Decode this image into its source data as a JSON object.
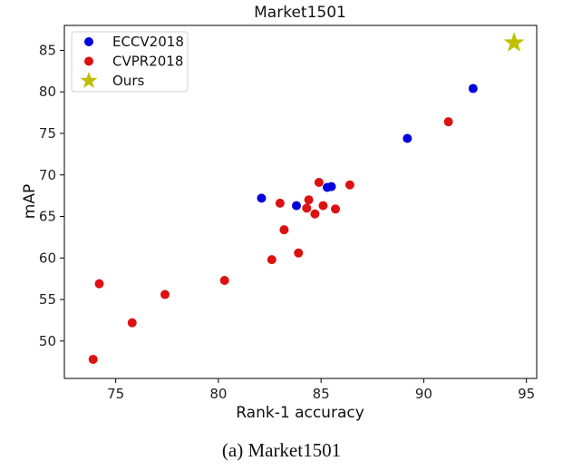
{
  "chart_data": {
    "type": "scatter",
    "title": "Market1501",
    "xlabel": "Rank-1 accuracy",
    "ylabel": "mAP",
    "xlim": [
      72.5,
      95.5
    ],
    "ylim": [
      45.5,
      88
    ],
    "xticks": [
      75,
      80,
      85,
      90,
      95
    ],
    "yticks": [
      50,
      55,
      60,
      65,
      70,
      75,
      80,
      85
    ],
    "grid": false,
    "legend_position": "top-left",
    "series": [
      {
        "name": "ECCV2018",
        "color": "#0000dd",
        "marker": "circle",
        "points": [
          {
            "x": 82.1,
            "y": 67.2
          },
          {
            "x": 83.8,
            "y": 66.3
          },
          {
            "x": 85.3,
            "y": 68.5
          },
          {
            "x": 85.5,
            "y": 68.6
          },
          {
            "x": 89.2,
            "y": 74.4
          },
          {
            "x": 92.4,
            "y": 80.4
          }
        ]
      },
      {
        "name": "CVPR2018",
        "color": "#dd1111",
        "marker": "circle",
        "points": [
          {
            "x": 73.9,
            "y": 47.8
          },
          {
            "x": 74.2,
            "y": 56.9
          },
          {
            "x": 75.8,
            "y": 52.2
          },
          {
            "x": 77.4,
            "y": 55.6
          },
          {
            "x": 80.3,
            "y": 57.3
          },
          {
            "x": 82.6,
            "y": 59.8
          },
          {
            "x": 83.0,
            "y": 66.6
          },
          {
            "x": 83.2,
            "y": 63.4
          },
          {
            "x": 83.9,
            "y": 60.6
          },
          {
            "x": 84.3,
            "y": 66.0
          },
          {
            "x": 84.4,
            "y": 67.0
          },
          {
            "x": 84.7,
            "y": 65.3
          },
          {
            "x": 84.9,
            "y": 69.1
          },
          {
            "x": 85.1,
            "y": 66.3
          },
          {
            "x": 85.7,
            "y": 65.9
          },
          {
            "x": 86.4,
            "y": 68.8
          },
          {
            "x": 91.2,
            "y": 76.4
          }
        ]
      },
      {
        "name": "Ours",
        "color": "#bfbf00",
        "marker": "star",
        "points": [
          {
            "x": 94.4,
            "y": 85.9
          }
        ]
      }
    ]
  },
  "caption": "(a)  Market1501"
}
